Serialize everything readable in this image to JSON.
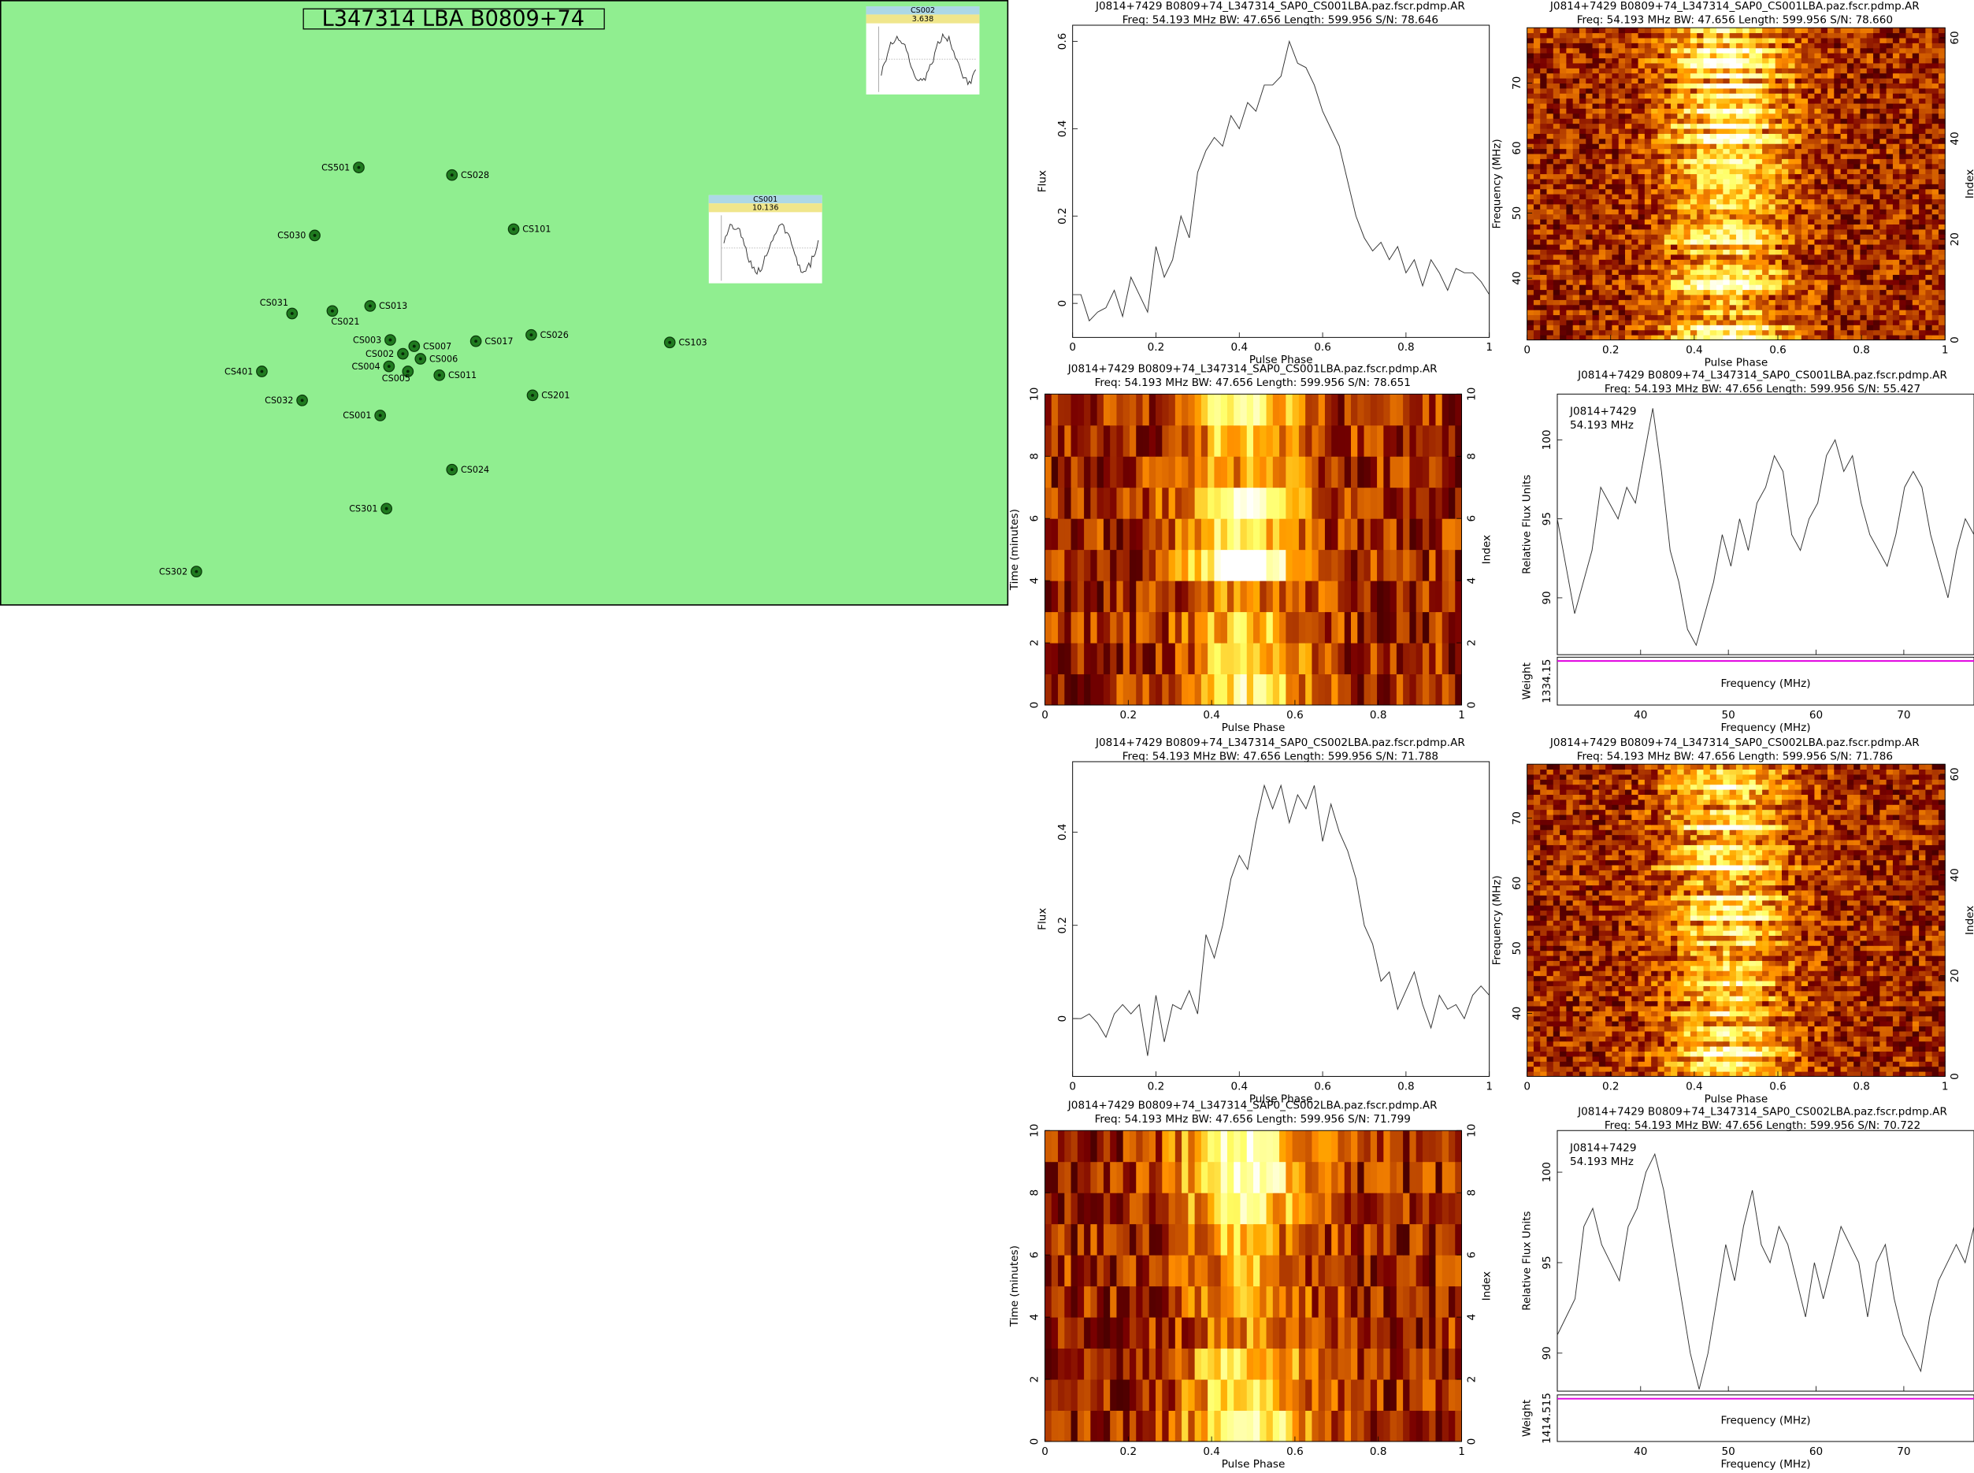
{
  "map": {
    "title": "L347314   LBA   B0809+74",
    "stations": [
      "CS501",
      "CS028",
      "CS030",
      "CS101",
      "CS031",
      "CS021",
      "CS013",
      "CS003",
      "CS007",
      "CS002",
      "CS006",
      "CS004",
      "CS005",
      "CS011",
      "CS017",
      "CS026",
      "CS103",
      "CS401",
      "CS032",
      "CS201",
      "CS001",
      "CS024",
      "CS301",
      "CS302"
    ],
    "insets": [
      {
        "station": "CS002",
        "value": "3.638"
      },
      {
        "station": "CS001",
        "value": "10.136"
      }
    ]
  },
  "panels": [
    {
      "kind": "profile",
      "title": "J0814+7429  B0809+74_L347314_SAP0_CS001LBA.paz.fscr.pdmp.AR",
      "subtitle": "Freq: 54.193 MHz  BW: 47.656  Length: 599.956  S/N: 78.646",
      "x_label": "Pulse Phase",
      "y_label": "Flux",
      "xlim": [
        0,
        1
      ],
      "xticks": [
        0,
        0.2,
        0.4,
        0.6,
        0.8,
        1
      ],
      "ylim": [
        -0.078,
        0.637
      ],
      "yticks": [
        0,
        0.2,
        0.4,
        0.6
      ],
      "values": [
        0.02,
        0.02,
        -0.04,
        -0.02,
        -0.01,
        0.03,
        -0.03,
        0.06,
        0.02,
        -0.02,
        0.13,
        0.06,
        0.1,
        0.2,
        0.15,
        0.3,
        0.35,
        0.38,
        0.36,
        0.43,
        0.4,
        0.46,
        0.44,
        0.5,
        0.5,
        0.52,
        0.6,
        0.55,
        0.54,
        0.5,
        0.44,
        0.4,
        0.36,
        0.28,
        0.2,
        0.15,
        0.12,
        0.14,
        0.1,
        0.13,
        0.07,
        0.1,
        0.04,
        0.1,
        0.07,
        0.03,
        0.08,
        0.07,
        0.07,
        0.05,
        0.02
      ]
    },
    {
      "kind": "freq-phase",
      "title": "J0814+7429  B0809+74_L347314_SAP0_CS001LBA.paz.fscr.pdmp.AR",
      "subtitle": "Freq: 54.193 MHz  BW: 47.656  Length: 599.956  S/N: 78.660",
      "x_label": "Pulse Phase",
      "y_label": "Frequency (MHz)",
      "y2_label": "Index",
      "xlim": [
        0,
        1
      ],
      "xticks": [
        0,
        0.2,
        0.4,
        0.6,
        0.8,
        1
      ],
      "ylim": [
        30.5,
        78.5
      ],
      "yticks": [
        40,
        50,
        60,
        70
      ],
      "y2lim": [
        0,
        62
      ],
      "y2ticks": [
        0,
        20,
        40,
        60
      ]
    },
    {
      "kind": "time-phase",
      "title": "J0814+7429  B0809+74_L347314_SAP0_CS001LBA.paz.fscr.pdmp.AR",
      "subtitle": "Freq: 54.193 MHz  BW: 47.656  Length: 599.956  S/N: 78.651",
      "x_label": "Pulse Phase",
      "y_label": "Time (minutes)",
      "y2_label": "Index",
      "xlim": [
        0,
        1
      ],
      "xticks": [
        0,
        0.2,
        0.4,
        0.6,
        0.8,
        1
      ],
      "ylim": [
        0,
        10
      ],
      "yticks": [
        0,
        2,
        4,
        6,
        8,
        10
      ],
      "y2lim": [
        0,
        10
      ],
      "y2ticks": [
        0,
        2,
        4,
        6,
        8,
        10
      ]
    },
    {
      "kind": "spectrum",
      "title": "J0814+7429  B0809+74_L347314_SAP0_CS001LBA.paz.fscr.pdmp.AR",
      "subtitle": "Freq: 54.193 MHz  BW: 47.656  Length: 599.956  S/N: 55.427",
      "source": "J0814+7429",
      "freq": "54.193 MHz",
      "x_label": "Frequency (MHz)",
      "weight_x_label": "Frequency (MHz)",
      "y_label": "Relative Flux Units",
      "weight_label": "Weight",
      "weight_tick": "1334.15",
      "xlim": [
        30.5,
        78
      ],
      "xticks": [
        40,
        50,
        60,
        70
      ],
      "ylim": [
        86.4,
        102.9
      ],
      "yticks": [
        90,
        95,
        100
      ],
      "values": [
        95,
        92,
        89,
        91,
        93,
        97,
        96,
        95,
        97,
        96,
        99,
        102,
        98,
        93,
        91,
        88,
        87,
        89,
        91,
        94,
        92,
        95,
        93,
        96,
        97,
        99,
        98,
        94,
        93,
        95,
        96,
        99,
        100,
        98,
        99,
        96,
        94,
        93,
        92,
        94,
        97,
        98,
        97,
        94,
        92,
        90,
        93,
        95,
        94
      ]
    },
    {
      "kind": "profile",
      "title": "J0814+7429  B0809+74_L347314_SAP0_CS002LBA.paz.fscr.pdmp.AR",
      "subtitle": "Freq: 54.193 MHz  BW: 47.656  Length: 599.956  S/N: 71.788",
      "x_label": "Pulse Phase",
      "y_label": "Flux",
      "xlim": [
        0,
        1
      ],
      "xticks": [
        0,
        0.2,
        0.4,
        0.6,
        0.8,
        1
      ],
      "ylim": [
        -0.124,
        0.551
      ],
      "yticks": [
        0,
        0.2,
        0.4
      ],
      "values": [
        0,
        0,
        0.01,
        -0.01,
        -0.04,
        0.01,
        0.03,
        0.01,
        0.03,
        -0.08,
        0.05,
        -0.05,
        0.03,
        0.02,
        0.06,
        0.01,
        0.18,
        0.13,
        0.2,
        0.3,
        0.35,
        0.32,
        0.42,
        0.5,
        0.45,
        0.5,
        0.42,
        0.48,
        0.45,
        0.5,
        0.38,
        0.46,
        0.4,
        0.36,
        0.3,
        0.2,
        0.16,
        0.08,
        0.1,
        0.02,
        0.06,
        0.1,
        0.03,
        -0.02,
        0.05,
        0.02,
        0.03,
        0.0,
        0.05,
        0.07,
        0.05
      ]
    },
    {
      "kind": "freq-phase",
      "title": "J0814+7429  B0809+74_L347314_SAP0_CS002LBA.paz.fscr.pdmp.AR",
      "subtitle": "Freq: 54.193 MHz  BW: 47.656  Length: 599.956  S/N: 71.786",
      "x_label": "Pulse Phase",
      "y_label": "Frequency (MHz)",
      "y2_label": "Index",
      "xlim": [
        0,
        1
      ],
      "xticks": [
        0,
        0.2,
        0.4,
        0.6,
        0.8,
        1
      ],
      "ylim": [
        30.3,
        78.3
      ],
      "yticks": [
        40,
        50,
        60,
        70
      ],
      "y2lim": [
        0,
        62
      ],
      "y2ticks": [
        0,
        20,
        40,
        60
      ]
    },
    {
      "kind": "time-phase",
      "title": "J0814+7429  B0809+74_L347314_SAP0_CS002LBA.paz.fscr.pdmp.AR",
      "subtitle": "Freq: 54.193 MHz  BW: 47.656  Length: 599.956  S/N: 71.799",
      "x_label": "Pulse Phase",
      "y_label": "Time (minutes)",
      "y2_label": "Index",
      "xlim": [
        0,
        1
      ],
      "xticks": [
        0,
        0.2,
        0.4,
        0.6,
        0.8,
        1
      ],
      "ylim": [
        0,
        10
      ],
      "yticks": [
        0,
        2,
        4,
        6,
        8,
        10
      ],
      "y2lim": [
        0,
        10
      ],
      "y2ticks": [
        0,
        2,
        4,
        6,
        8,
        10
      ]
    },
    {
      "kind": "spectrum",
      "title": "J0814+7429  B0809+74_L347314_SAP0_CS002LBA.paz.fscr.pdmp.AR",
      "subtitle": "Freq: 54.193 MHz  BW: 47.656  Length: 599.956  S/N: 70.722",
      "source": "J0814+7429",
      "freq": "54.193 MHz",
      "x_label": "Frequency (MHz)",
      "weight_x_label": "Frequency (MHz)",
      "y_label": "Relative Flux Units",
      "weight_label": "Weight",
      "weight_tick": "1414.515",
      "xlim": [
        30.5,
        78
      ],
      "xticks": [
        40,
        50,
        60,
        70
      ],
      "ylim": [
        87.9,
        102.3
      ],
      "yticks": [
        90,
        95,
        100
      ],
      "values": [
        91,
        92,
        93,
        97,
        98,
        96,
        95,
        94,
        97,
        98,
        100,
        101,
        99,
        96,
        93,
        90,
        88,
        90,
        93,
        96,
        94,
        97,
        99,
        96,
        95,
        97,
        96,
        94,
        92,
        95,
        93,
        95,
        97,
        96,
        95,
        92,
        95,
        96,
        93,
        91,
        90,
        89,
        92,
        94,
        95,
        96,
        95,
        97
      ]
    }
  ]
}
